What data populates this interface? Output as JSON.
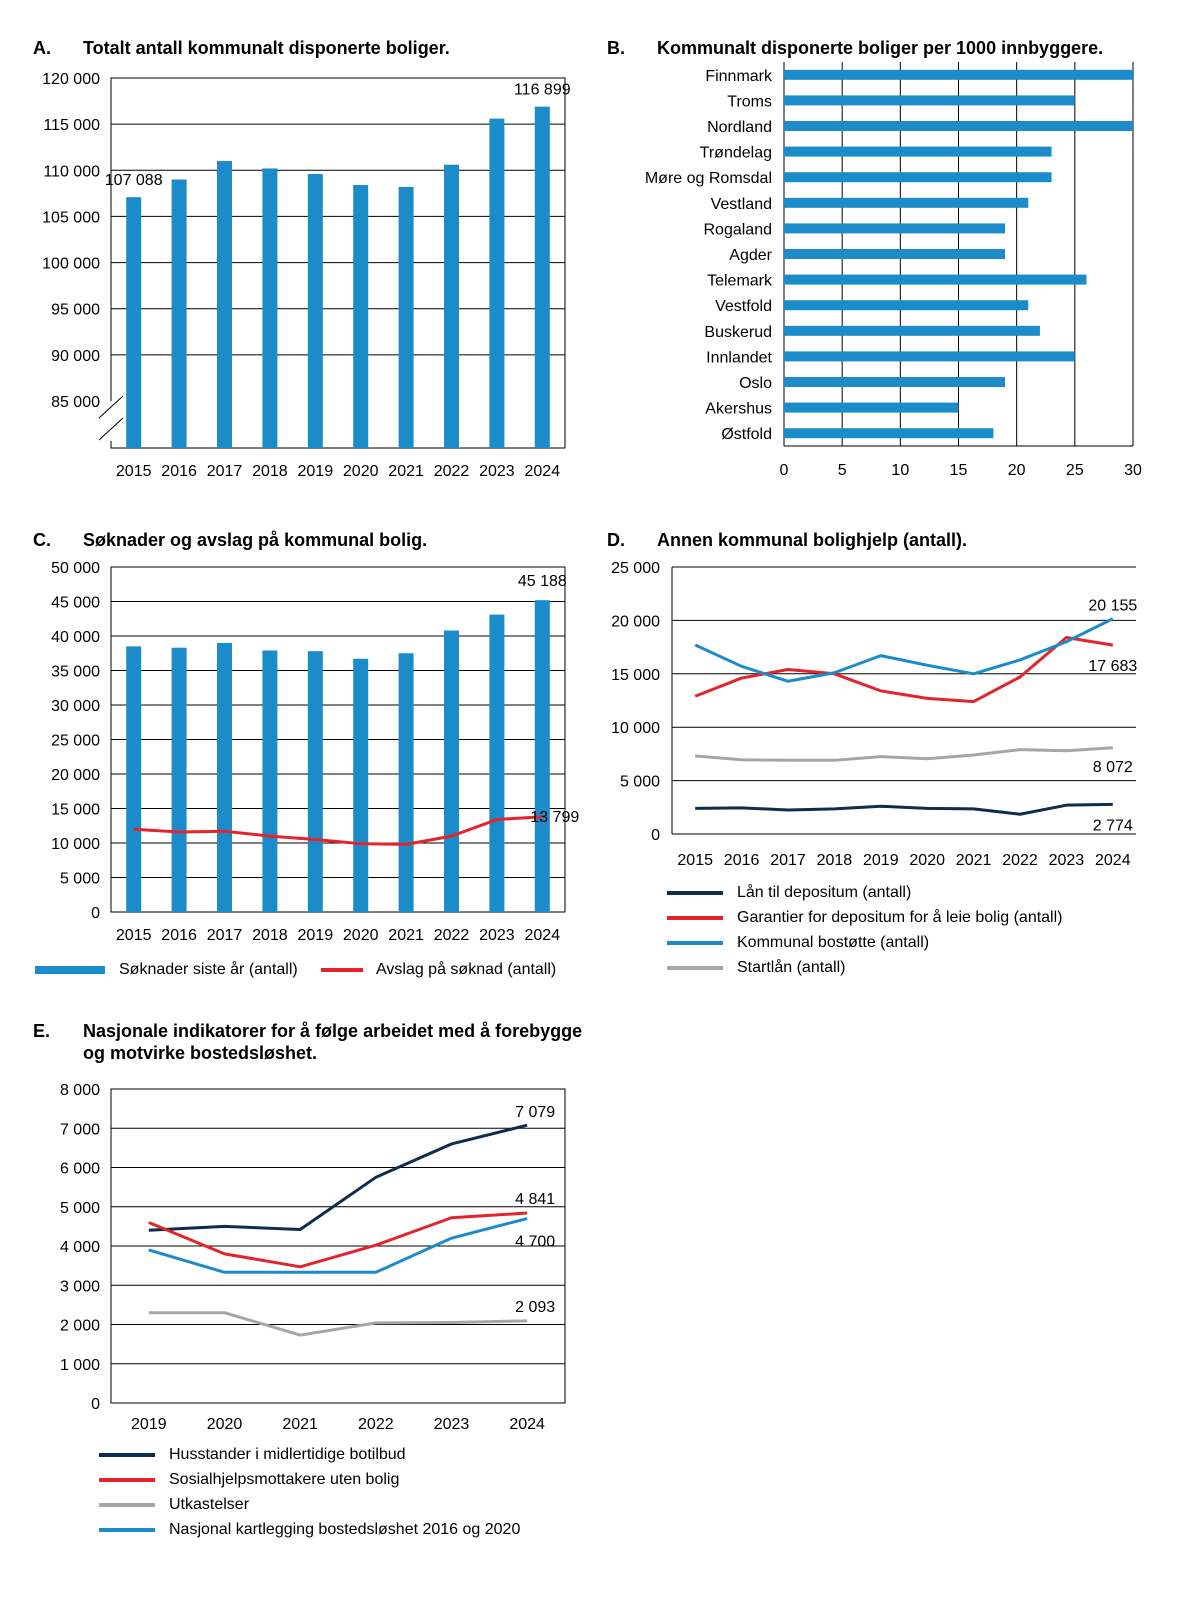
{
  "colors": {
    "blue": "#1b8cc9",
    "navy": "#0d2c4e",
    "red": "#e3242b",
    "gray": "#a6a6a6",
    "grid": "#000000"
  },
  "chart_data": [
    {
      "id": "A",
      "type": "bar",
      "letter": "A.",
      "title": "Totalt antall kommunalt disponerte boliger.",
      "categories": [
        "2015",
        "2016",
        "2017",
        "2018",
        "2019",
        "2020",
        "2021",
        "2022",
        "2023",
        "2024"
      ],
      "values": [
        107088,
        109000,
        111000,
        110200,
        109600,
        108400,
        108200,
        110600,
        115600,
        116899
      ],
      "ylim": [
        85000,
        120000
      ],
      "yticks": [
        85000,
        90000,
        95000,
        100000,
        105000,
        110000,
        115000,
        120000
      ],
      "ytick_labels": [
        "85 000",
        "90 000",
        "95 000",
        "100 000",
        "105 000",
        "110 000",
        "115 000",
        "120 000"
      ],
      "data_labels": [
        {
          "index": 0,
          "text": "107 088"
        },
        {
          "index": 9,
          "text": "116 899"
        }
      ],
      "axis_break": true
    },
    {
      "id": "B",
      "type": "bar",
      "orientation": "horizontal",
      "letter": "B.",
      "title": "Kommunalt disponerte boliger per 1000 innbyggere.",
      "categories": [
        "Finnmark",
        "Troms",
        "Nordland",
        "Trøndelag",
        "Møre og Romsdal",
        "Vestland",
        "Rogaland",
        "Agder",
        "Telemark",
        "Vestfold",
        "Buskerud",
        "Innlandet",
        "Oslo",
        "Akershus",
        "Østfold"
      ],
      "values": [
        30,
        25,
        30,
        23,
        23,
        21,
        19,
        19,
        26,
        21,
        22,
        25,
        19,
        15,
        18
      ],
      "xlim": [
        0,
        30
      ],
      "xticks": [
        0,
        5,
        10,
        15,
        20,
        25,
        30
      ],
      "xtick_labels": [
        "0",
        "5",
        "10",
        "15",
        "20",
        "25",
        "30"
      ]
    },
    {
      "id": "C",
      "type": "bar",
      "letter": "C.",
      "title": "Søknader og avslag på kommunal bolig.",
      "categories": [
        "2015",
        "2016",
        "2017",
        "2018",
        "2019",
        "2020",
        "2021",
        "2022",
        "2023",
        "2024"
      ],
      "series": [
        {
          "name": "Søknader siste år (antall)",
          "kind": "bar",
          "color": "blue",
          "values": [
            38500,
            38300,
            39000,
            37900,
            37800,
            36700,
            37500,
            40800,
            43100,
            45188
          ]
        },
        {
          "name": "Avslag på søknad (antall)",
          "kind": "line",
          "color": "red",
          "values": [
            12000,
            11600,
            11700,
            11000,
            10500,
            9900,
            9800,
            11000,
            13400,
            13799
          ]
        }
      ],
      "ylim": [
        0,
        50000
      ],
      "yticks": [
        0,
        5000,
        10000,
        15000,
        20000,
        25000,
        30000,
        35000,
        40000,
        45000,
        50000
      ],
      "ytick_labels": [
        "0",
        "5 000",
        "10 000",
        "15 000",
        "20 000",
        "25 000",
        "30 000",
        "35 000",
        "40 000",
        "45 000",
        "50 000"
      ],
      "data_labels": [
        {
          "series": 0,
          "index": 9,
          "text": "45 188"
        },
        {
          "series": 1,
          "index": 9,
          "text": "13 799"
        }
      ]
    },
    {
      "id": "D",
      "type": "line",
      "letter": "D.",
      "title": "Annen kommunal bolighjelp (antall).",
      "categories": [
        "2015",
        "2016",
        "2017",
        "2018",
        "2019",
        "2020",
        "2021",
        "2022",
        "2023",
        "2024"
      ],
      "series": [
        {
          "name": "Lån til depositum (antall)",
          "color": "navy",
          "values": [
            2400,
            2450,
            2250,
            2350,
            2600,
            2400,
            2350,
            1850,
            2700,
            2774
          ]
        },
        {
          "name": "Garantier for depositum for å leie bolig  (antall)",
          "color": "red",
          "values": [
            12900,
            14600,
            15400,
            15000,
            13400,
            12700,
            12400,
            14700,
            18400,
            17683
          ]
        },
        {
          "name": "Kommunal bostøtte (antall)",
          "color": "blue",
          "values": [
            17700,
            15700,
            14300,
            15100,
            16700,
            15800,
            15000,
            16300,
            18000,
            20155
          ]
        },
        {
          "name": "Startlån (antall)",
          "color": "gray",
          "values": [
            7300,
            6950,
            6900,
            6900,
            7250,
            7050,
            7400,
            7900,
            7800,
            8072
          ]
        }
      ],
      "ylim": [
        0,
        25000
      ],
      "yticks": [
        0,
        5000,
        10000,
        15000,
        20000,
        25000
      ],
      "ytick_labels": [
        "0",
        "5 000",
        "10 000",
        "15 000",
        "20 000",
        "25 000"
      ],
      "data_labels": [
        {
          "series": 2,
          "index": 9,
          "text": "20 155"
        },
        {
          "series": 1,
          "index": 9,
          "text": "17 683"
        },
        {
          "series": 3,
          "index": 9,
          "text": "8 072"
        },
        {
          "series": 0,
          "index": 9,
          "text": "2 774"
        }
      ]
    },
    {
      "id": "E",
      "type": "line",
      "letter": "E.",
      "title": "Nasjonale indikatorer for å følge arbeidet med å forebygge",
      "title_line2": "og motvirke bostedsløshet.",
      "categories": [
        "2019",
        "2020",
        "2021",
        "2022",
        "2023",
        "2024"
      ],
      "series": [
        {
          "name": "Husstander i midlertidige botilbud",
          "color": "navy",
          "values": [
            4400,
            4500,
            4420,
            5750,
            6600,
            7079
          ]
        },
        {
          "name": "Sosialhjelpsmottakere uten bolig",
          "color": "red",
          "values": [
            4600,
            3800,
            3470,
            4020,
            4720,
            4841
          ]
        },
        {
          "name": "Utkastelser",
          "color": "gray",
          "values": [
            2300,
            2300,
            1730,
            2040,
            2050,
            2093
          ]
        },
        {
          "name": "Nasjonal kartlegging bostedsløshet 2016 og 2020",
          "color": "blue",
          "values": [
            3900,
            3330,
            3330,
            3330,
            4200,
            4700
          ]
        }
      ],
      "ylim": [
        0,
        8000
      ],
      "yticks": [
        0,
        1000,
        2000,
        3000,
        4000,
        5000,
        6000,
        7000,
        8000
      ],
      "ytick_labels": [
        "0",
        "1 000",
        "2 000",
        "3 000",
        "4 000",
        "5 000",
        "6 000",
        "7 000",
        "8 000"
      ],
      "data_labels": [
        {
          "series": 0,
          "index": 5,
          "text": "7 079"
        },
        {
          "series": 1,
          "index": 5,
          "text": "4 841"
        },
        {
          "series": 3,
          "index": 5,
          "text": "4 700"
        },
        {
          "series": 2,
          "index": 5,
          "text": "2 093"
        }
      ]
    }
  ]
}
